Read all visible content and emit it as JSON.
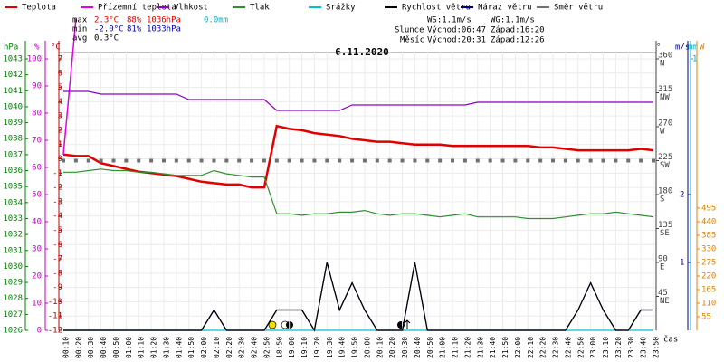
{
  "chart_data": {
    "type": "line",
    "title": "6.11.2020",
    "xlabel": "čas",
    "categories": [
      "00:10",
      "00:20",
      "00:30",
      "00:40",
      "00:50",
      "01:00",
      "01:10",
      "01:20",
      "01:30",
      "01:40",
      "01:50",
      "02:00",
      "02:10",
      "02:20",
      "02:30",
      "02:40",
      "02:50",
      "18:50",
      "19:00",
      "19:10",
      "19:20",
      "19:30",
      "19:40",
      "19:50",
      "20:00",
      "20:10",
      "20:20",
      "20:30",
      "20:40",
      "20:50",
      "21:00",
      "21:10",
      "21:20",
      "21:30",
      "21:40",
      "21:50",
      "22:00",
      "22:10",
      "22:20",
      "22:30",
      "22:40",
      "22:50",
      "23:00",
      "23:10",
      "23:20",
      "23:30",
      "23:40",
      "23:50"
    ],
    "axes": {
      "hpa": {
        "label": "hPa",
        "color": "#008000",
        "lim": [
          1026,
          1043
        ],
        "ticks": [
          1026,
          1027,
          1028,
          1029,
          1030,
          1031,
          1032,
          1033,
          1034,
          1035,
          1036,
          1037,
          1038,
          1039,
          1040,
          1041,
          1042,
          1043
        ]
      },
      "pct": {
        "label": "%",
        "color": "#c000c0",
        "lim": [
          0,
          100
        ],
        "ticks": [
          0,
          10,
          20,
          30,
          40,
          50,
          60,
          70,
          80,
          90,
          100
        ]
      },
      "temp": {
        "label": "°C",
        "color": "#c00000",
        "lim": [
          -12,
          7
        ],
        "ticks": [
          -12,
          -11,
          -10,
          -9,
          -8,
          -7,
          -6,
          -5,
          -4,
          -3,
          -2,
          -1,
          0,
          1,
          2,
          3,
          4,
          5,
          6,
          7
        ]
      },
      "dir": {
        "label": "°",
        "color": "#404040",
        "lim": [
          0,
          360
        ],
        "ticks": [
          45,
          90,
          135,
          180,
          225,
          270,
          315,
          360
        ],
        "compass": [
          "NE",
          "E",
          "SE",
          "S",
          "SW",
          "W",
          "NW",
          "N"
        ]
      },
      "wind": {
        "label": "m/s",
        "color": "#000080",
        "lim": [
          0,
          4
        ],
        "ticks": [
          1,
          2
        ]
      },
      "rain": {
        "label": "mm",
        "color": "#00b0c0",
        "lim": [
          0,
          1
        ],
        "ticks": [
          1
        ]
      },
      "solar": {
        "label": "W",
        "color": "#e08000",
        "lim": [
          0,
          1100
        ],
        "ticks": [
          55,
          110,
          165,
          220,
          275,
          330,
          385,
          440,
          495
        ]
      }
    },
    "series": [
      {
        "name": "Teplota",
        "color": "#e00000",
        "axis": "temp",
        "values": [
          0.3,
          0.2,
          0.2,
          -0.3,
          -0.5,
          -0.7,
          -0.9,
          -1.0,
          -1.1,
          -1.2,
          -1.4,
          -1.6,
          -1.7,
          -1.8,
          -1.8,
          -2.0,
          -2.0,
          2.3,
          2.1,
          2.0,
          1.8,
          1.7,
          1.6,
          1.4,
          1.3,
          1.2,
          1.2,
          1.1,
          1.0,
          1.0,
          1.0,
          0.9,
          0.9,
          0.9,
          0.9,
          0.9,
          0.9,
          0.9,
          0.8,
          0.8,
          0.7,
          0.6,
          0.6,
          0.6,
          0.6,
          0.6,
          0.7,
          0.6
        ]
      },
      {
        "name": "Přízemní teplota",
        "color": "#e000e0",
        "axis": "temp",
        "values": [
          0.3,
          9.8,
          null,
          null,
          null,
          null,
          null,
          null,
          null,
          null,
          null,
          null,
          null,
          null,
          null,
          null,
          null,
          null,
          null,
          null,
          null,
          null,
          null,
          null,
          null,
          null,
          null,
          null,
          null,
          null,
          null,
          null,
          null,
          null,
          null,
          null,
          null,
          null,
          null,
          null,
          null,
          null,
          null,
          null,
          null,
          null,
          null,
          null
        ]
      },
      {
        "name": "Vlhkost",
        "color": "#9000c0",
        "axis": "pct",
        "values": [
          88,
          88,
          88,
          87,
          87,
          87,
          87,
          87,
          87,
          87,
          85,
          85,
          85,
          85,
          85,
          85,
          85,
          81,
          81,
          81,
          81,
          81,
          81,
          83,
          83,
          83,
          83,
          83,
          83,
          83,
          83,
          83,
          83,
          84,
          84,
          84,
          84,
          84,
          84,
          84,
          84,
          84,
          84,
          84,
          84,
          84,
          84,
          84
        ]
      },
      {
        "name": "Tlak",
        "color": "#309030",
        "axis": "hpa",
        "values": [
          1035.9,
          1035.9,
          1036.0,
          1036.1,
          1036.0,
          1036.0,
          1035.9,
          1035.9,
          1035.8,
          1035.7,
          1035.7,
          1035.7,
          1036.0,
          1035.8,
          1035.7,
          1035.6,
          1035.6,
          1033.3,
          1033.3,
          1033.2,
          1033.3,
          1033.3,
          1033.4,
          1033.4,
          1033.5,
          1033.3,
          1033.2,
          1033.3,
          1033.3,
          1033.2,
          1033.1,
          1033.2,
          1033.3,
          1033.1,
          1033.1,
          1033.1,
          1033.1,
          1033.0,
          1033.0,
          1033.0,
          1033.1,
          1033.2,
          1033.3,
          1033.3,
          1033.4,
          1033.3,
          1033.2,
          1033.1
        ]
      },
      {
        "name": "Srážky",
        "color": "#00c0d0",
        "axis": "rain",
        "values": [
          0,
          0,
          0,
          0,
          0,
          0,
          0,
          0,
          0,
          0,
          0,
          0,
          0,
          0,
          0,
          0,
          0,
          0,
          0,
          0,
          0,
          0,
          0,
          0,
          0,
          0,
          0,
          0,
          0,
          0,
          0,
          0,
          0,
          0,
          0,
          0,
          0,
          0,
          0,
          0,
          0,
          0,
          0,
          0,
          0,
          0,
          0,
          0
        ]
      },
      {
        "name": "Náraz větru",
        "color": "#000080",
        "axis": "wind",
        "values": [
          0,
          0,
          0,
          0,
          0,
          0,
          0,
          0,
          0,
          0,
          0,
          0,
          0.3,
          0,
          0,
          0,
          0,
          0.3,
          0.3,
          0.3,
          0,
          1.0,
          0.3,
          0.7,
          0.3,
          0,
          0,
          0,
          1.0,
          0,
          0,
          0,
          0,
          0,
          0,
          0,
          0,
          0,
          0,
          0,
          0,
          0.3,
          0.7,
          0.3,
          0,
          0,
          0.3,
          0.3
        ]
      },
      {
        "name": "Rychlost větru",
        "color": "#000000",
        "axis": "wind",
        "values": [
          0,
          0,
          0,
          0,
          0,
          0,
          0,
          0,
          0,
          0,
          0,
          0,
          0.3,
          0,
          0,
          0,
          0,
          0.3,
          0.3,
          0.3,
          0,
          1.0,
          0.3,
          0.7,
          0.3,
          0,
          0,
          0,
          1.0,
          0,
          0,
          0,
          0,
          0,
          0,
          0,
          0,
          0,
          0,
          0,
          0,
          0.3,
          0.7,
          0.3,
          0,
          0,
          0.3,
          0.3
        ]
      },
      {
        "name": "Směr větru",
        "color": "#707070",
        "axis": "dir",
        "marker": "square",
        "values": [
          225,
          225,
          225,
          225,
          225,
          225,
          225,
          225,
          225,
          225,
          225,
          225,
          225,
          225,
          225,
          225,
          225,
          225,
          225,
          225,
          225,
          225,
          225,
          225,
          225,
          225,
          225,
          225,
          225,
          225,
          225,
          225,
          225,
          225,
          225,
          225,
          225,
          225,
          225,
          225,
          225,
          225,
          225,
          225,
          225,
          225,
          225,
          225
        ]
      }
    ],
    "legend_order": [
      0,
      1,
      2,
      3,
      4,
      6,
      5,
      7
    ],
    "stats": [
      {
        "label": "max",
        "color": "#e00000",
        "items": [
          "2.3°C",
          "88%",
          "1036hPa"
        ],
        "rain": "0.0mm"
      },
      {
        "label": "min",
        "color": "#0000c0",
        "items": [
          "-2.0°C",
          "81%",
          "1033hPa"
        ]
      },
      {
        "label": "avg",
        "color": "#000000",
        "items": [
          "0.3°C"
        ]
      }
    ],
    "info": [
      "WS:1.1m/s",
      "WG:1.1m/s",
      "Slunce",
      "Východ:06:47",
      "Západ:16:20",
      "Měsíc",
      "Východ:20:31",
      "Západ:12:26"
    ]
  }
}
